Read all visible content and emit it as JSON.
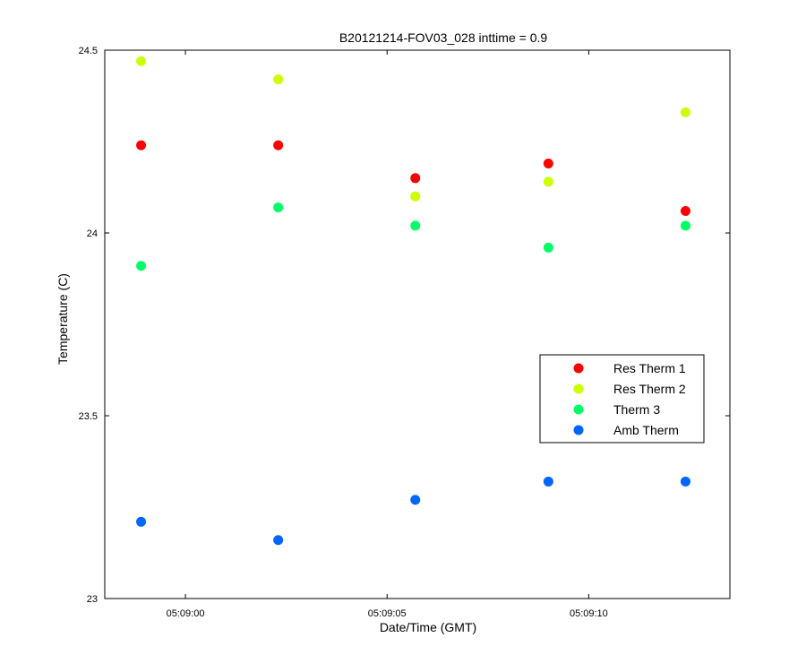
{
  "chart_data": {
    "type": "scatter",
    "title": "B20121214-FOV03_028 inttime = 0.9",
    "xlabel": "Date/Time (GMT)",
    "ylabel": "Temperature (C)",
    "x_ticks": [
      "05:09:00",
      "05:09:05",
      "05:09:10"
    ],
    "x_tick_seconds": [
      0,
      5,
      10
    ],
    "xlim_seconds": [
      -2,
      13.5
    ],
    "y_ticks": [
      "23",
      "23.5",
      "24",
      "24.5"
    ],
    "ylim": [
      23,
      24.5
    ],
    "x": [
      "05:08:58.9",
      "05:09:02.3",
      "05:09:05.7",
      "05:09:09.0",
      "05:09:12.4"
    ],
    "x_seconds": [
      -1.1,
      2.3,
      5.7,
      9.0,
      12.4
    ],
    "series": [
      {
        "name": "Res Therm 1",
        "color": "#ff0000",
        "values": [
          24.24,
          24.24,
          24.15,
          24.19,
          24.06
        ]
      },
      {
        "name": "Res Therm 2",
        "color": "#ccff00",
        "values": [
          24.47,
          24.42,
          24.1,
          24.14,
          24.33
        ]
      },
      {
        "name": "Therm 3",
        "color": "#00ff66",
        "values": [
          23.91,
          24.07,
          24.02,
          23.96,
          24.02
        ]
      },
      {
        "name": "Amb Therm",
        "color": "#0066ff",
        "values": [
          23.21,
          23.16,
          23.27,
          23.32,
          23.32
        ]
      }
    ],
    "grid": false,
    "legend_position": "right"
  }
}
